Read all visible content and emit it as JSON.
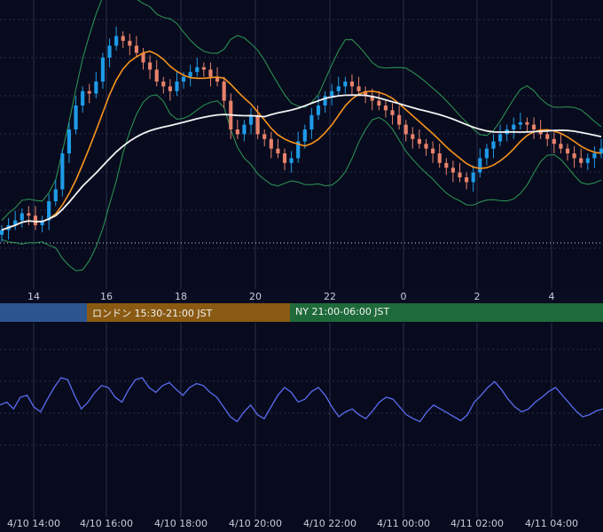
{
  "colors": {
    "background": "#080b1e",
    "grid": "#2a2f4a",
    "candle_up": "#1e9be8",
    "candle_down": "#e8826a",
    "ma_short": "#f7941d",
    "ma_long": "#f2f2f2",
    "bollinger": "#2e9a55",
    "oscillator": "#5a6cf0",
    "session_tokyo": "#2c5590",
    "session_london": "#8a5a12",
    "session_ny": "#1f6a3a"
  },
  "sessions": [
    {
      "label": "",
      "color": "#2c5590"
    },
    {
      "label": "ロンドン 15:30-21:00 JST",
      "color": "#8a5a12"
    },
    {
      "label": "NY 21:00-06:00 JST",
      "color": "#1f6a3a"
    }
  ],
  "chart_data": [
    {
      "type": "candlestick",
      "title": "",
      "xlabel": "",
      "ylabel": "",
      "grid": true,
      "x_tick_labels": [
        "14",
        "16",
        "18",
        "20",
        "22",
        "0",
        "2",
        "4"
      ],
      "series": [
        {
          "name": "",
          "kind": "ohlc",
          "close": [
            18,
            20,
            22,
            25,
            24,
            20,
            22,
            30,
            35,
            50,
            60,
            70,
            76,
            75,
            80,
            90,
            95,
            99,
            97,
            95,
            92,
            88,
            85,
            80,
            78,
            76,
            80,
            82,
            84,
            86,
            85,
            82,
            80,
            72,
            60,
            58,
            62,
            66,
            58,
            56,
            52,
            50,
            46,
            48,
            55,
            60,
            66,
            70,
            74,
            76,
            78,
            80,
            78,
            76,
            74,
            72,
            70,
            68,
            66,
            62,
            58,
            56,
            54,
            52,
            50,
            46,
            44,
            42,
            40,
            38,
            42,
            48,
            52,
            55,
            58,
            60,
            62,
            63,
            62,
            60,
            58,
            56,
            54,
            52,
            50,
            48,
            46,
            48,
            50,
            52
          ]
        },
        {
          "name": "",
          "kind": "moving_average",
          "period": "short"
        },
        {
          "name": "",
          "kind": "moving_average",
          "period": "long"
        },
        {
          "name": "",
          "kind": "bollinger_bands"
        }
      ]
    },
    {
      "type": "line",
      "title": "",
      "xlabel": "",
      "ylabel": "",
      "grid": true,
      "x_tick_labels": [
        "4/10 14:00",
        "4/10 16:00",
        "4/10 18:00",
        "4/10 20:00",
        "4/10 22:00",
        "4/11 00:00",
        "4/11 02:00",
        "4/11 04:00"
      ],
      "series": [
        {
          "name": "",
          "values": [
            52,
            55,
            48,
            60,
            62,
            50,
            45,
            58,
            70,
            80,
            78,
            62,
            48,
            55,
            65,
            72,
            70,
            60,
            55,
            68,
            78,
            80,
            70,
            65,
            72,
            75,
            68,
            62,
            70,
            74,
            72,
            65,
            60,
            50,
            40,
            35,
            45,
            52,
            42,
            38,
            50,
            62,
            70,
            65,
            55,
            58,
            66,
            70,
            62,
            50,
            40,
            45,
            48,
            42,
            38,
            46,
            55,
            60,
            58,
            50,
            42,
            38,
            35,
            45,
            52,
            48,
            44,
            40,
            36,
            42,
            55,
            62,
            70,
            76,
            68,
            58,
            50,
            45,
            48,
            55,
            60,
            66,
            70,
            62,
            54,
            46,
            40,
            42,
            46,
            48
          ]
        }
      ]
    }
  ]
}
